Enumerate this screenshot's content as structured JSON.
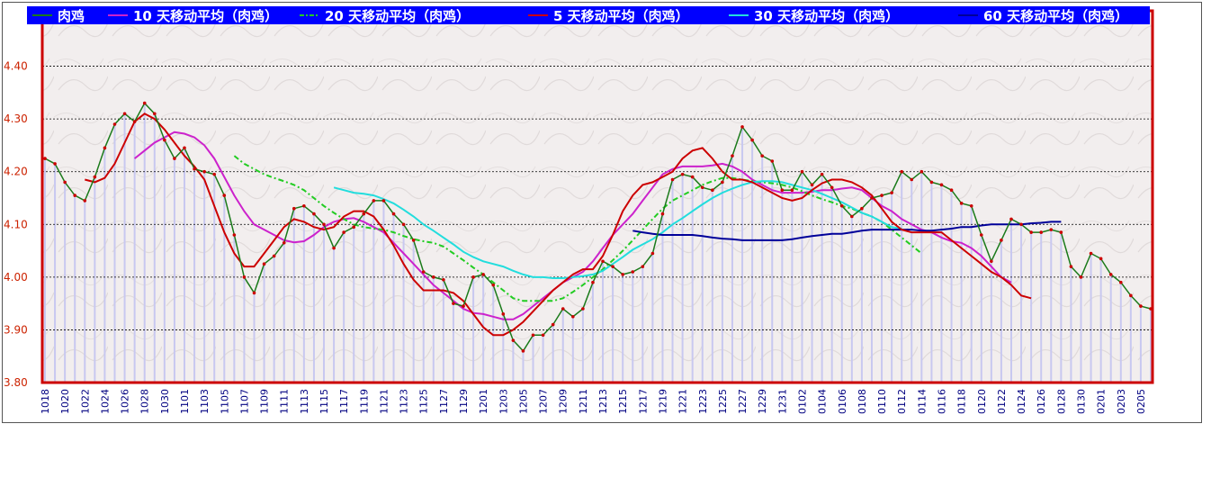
{
  "chart_data": {
    "type": "line",
    "y_ticks": [
      "3.80",
      "3.90",
      "4.00",
      "4.10",
      "4.20",
      "4.30",
      "4.40"
    ],
    "ylim": [
      3.8,
      4.5
    ],
    "x_labels": [
      "1018",
      "1020",
      "1022",
      "1024",
      "1026",
      "1028",
      "1030",
      "1101",
      "1103",
      "1105",
      "1107",
      "1109",
      "1111",
      "1113",
      "1115",
      "1117",
      "1119",
      "1121",
      "1123",
      "1125",
      "1127",
      "1129",
      "1201",
      "1203",
      "1205",
      "1207",
      "1209",
      "1211",
      "1213",
      "1215",
      "1217",
      "1219",
      "1221",
      "1223",
      "1225",
      "1227",
      "1229",
      "1231",
      "0102",
      "0104",
      "0106",
      "0108",
      "0110",
      "0112",
      "0114",
      "0116",
      "0118",
      "0120",
      "0122",
      "0124",
      "0126",
      "0128",
      "0130",
      "0201",
      "0203",
      "0205"
    ],
    "grid": "horizontal dashed",
    "legend_position": "top",
    "series": [
      {
        "name": "肉鸡",
        "color": "#1a7a1a",
        "marker_color": "#cc0000",
        "values": [
          4.225,
          4.215,
          4.18,
          4.155,
          4.145,
          4.19,
          4.245,
          4.29,
          4.31,
          4.295,
          4.33,
          4.31,
          4.26,
          4.225,
          4.245,
          4.205,
          4.2,
          4.195,
          4.155,
          4.08,
          4.0,
          3.97,
          4.025,
          4.04,
          4.065,
          4.13,
          4.135,
          4.12,
          4.1,
          4.055,
          4.085,
          4.095,
          4.12,
          4.145,
          4.145,
          4.12,
          4.1,
          4.07,
          4.01,
          4.0,
          3.995,
          3.95,
          3.945,
          4.0,
          4.005,
          3.985,
          3.93,
          3.88,
          3.86,
          3.89,
          3.89,
          3.91,
          3.94,
          3.925,
          3.94,
          3.99,
          4.03,
          4.02,
          4.005,
          4.01,
          4.02,
          4.045,
          4.12,
          4.185,
          4.195,
          4.19,
          4.17,
          4.165,
          4.18,
          4.23,
          4.285,
          4.26,
          4.23,
          4.22,
          4.165,
          4.165,
          4.2,
          4.175,
          4.195,
          4.17,
          4.135,
          4.115,
          4.13,
          4.15,
          4.155,
          4.16,
          4.2,
          4.185,
          4.2,
          4.18,
          4.175,
          4.165,
          4.14,
          4.135,
          4.08,
          4.03,
          4.07,
          4.11,
          4.1,
          4.085,
          4.085,
          4.09,
          4.085,
          4.02,
          4.0,
          4.045,
          4.035,
          4.005,
          3.99,
          3.965,
          3.945,
          3.94
        ]
      },
      {
        "name": "10 天移动平均（肉鸡）",
        "color": "#cc22cc",
        "start_index": 9,
        "values": [
          4.225,
          4.24,
          4.255,
          4.265,
          4.275,
          4.272,
          4.265,
          4.25,
          4.225,
          4.19,
          4.155,
          4.125,
          4.1,
          4.09,
          4.08,
          4.07,
          4.066,
          4.068,
          4.08,
          4.095,
          4.105,
          4.11,
          4.112,
          4.105,
          4.095,
          4.085,
          4.065,
          4.045,
          4.025,
          4.005,
          3.985,
          3.97,
          3.955,
          3.94,
          3.932,
          3.93,
          3.925,
          3.92,
          3.92,
          3.93,
          3.945,
          3.96,
          3.975,
          3.99,
          4.0,
          4.01,
          4.03,
          4.055,
          4.08,
          4.1,
          4.12,
          4.145,
          4.17,
          4.195,
          4.205,
          4.21,
          4.21,
          4.21,
          4.212,
          4.215,
          4.21,
          4.2,
          4.185,
          4.175,
          4.165,
          4.16,
          4.16,
          4.16,
          4.162,
          4.165,
          4.165,
          4.168,
          4.17,
          4.165,
          4.15,
          4.135,
          4.125,
          4.11,
          4.1,
          4.09,
          4.085,
          4.075,
          4.068,
          4.065,
          4.055,
          4.04,
          4.02,
          4.0,
          3.99
        ]
      },
      {
        "name": "20 天移动平均（肉鸡）",
        "color": "#22cc22",
        "dashed": true,
        "start_index": 19,
        "values": [
          4.23,
          4.215,
          4.205,
          4.195,
          4.188,
          4.182,
          4.175,
          4.165,
          4.15,
          4.135,
          4.122,
          4.11,
          4.1,
          4.095,
          4.092,
          4.09,
          4.085,
          4.078,
          4.072,
          4.068,
          4.065,
          4.058,
          4.045,
          4.032,
          4.018,
          4.005,
          3.99,
          3.975,
          3.96,
          3.955,
          3.955,
          3.955,
          3.955,
          3.96,
          3.972,
          3.985,
          4.0,
          4.015,
          4.032,
          4.05,
          4.07,
          4.09,
          4.11,
          4.13,
          4.145,
          4.155,
          4.165,
          4.175,
          4.182,
          4.188,
          4.188,
          4.185,
          4.182,
          4.18,
          4.178,
          4.175,
          4.17,
          4.163,
          4.155,
          4.148,
          4.142,
          4.135,
          4.13,
          4.122,
          4.115,
          4.105,
          4.09,
          4.075,
          4.06,
          4.045
        ]
      },
      {
        "name": "5 天移动平均（肉鸡）",
        "color": "#cc0000",
        "start_index": 4,
        "values": [
          4.185,
          4.18,
          4.188,
          4.215,
          4.255,
          4.295,
          4.31,
          4.3,
          4.28,
          4.255,
          4.23,
          4.21,
          4.185,
          4.135,
          4.085,
          4.045,
          4.02,
          4.02,
          4.045,
          4.07,
          4.095,
          4.11,
          4.105,
          4.095,
          4.09,
          4.095,
          4.115,
          4.125,
          4.125,
          4.115,
          4.09,
          4.06,
          4.025,
          3.995,
          3.975,
          3.975,
          3.975,
          3.97,
          3.955,
          3.93,
          3.905,
          3.89,
          3.89,
          3.9,
          3.915,
          3.935,
          3.955,
          3.975,
          3.99,
          4.005,
          4.015,
          4.015,
          4.04,
          4.08,
          4.125,
          4.155,
          4.175,
          4.18,
          4.19,
          4.2,
          4.225,
          4.24,
          4.245,
          4.225,
          4.2,
          4.185,
          4.185,
          4.18,
          4.17,
          4.16,
          4.15,
          4.145,
          4.15,
          4.165,
          4.178,
          4.185,
          4.185,
          4.18,
          4.17,
          4.155,
          4.13,
          4.105,
          4.09,
          4.085,
          4.085,
          4.085,
          4.085,
          4.07,
          4.055,
          4.04,
          4.025,
          4.01,
          4.0,
          3.985,
          3.965,
          3.96
        ]
      },
      {
        "name": "30 天移动平均（肉鸡）",
        "color": "#22dddd",
        "start_index": 29,
        "values": [
          4.17,
          4.165,
          4.16,
          4.158,
          4.155,
          4.148,
          4.14,
          4.128,
          4.115,
          4.1,
          4.088,
          4.075,
          4.062,
          4.048,
          4.038,
          4.03,
          4.025,
          4.02,
          4.012,
          4.005,
          4.0,
          4.0,
          3.998,
          3.998,
          4.0,
          4.002,
          4.005,
          4.012,
          4.025,
          4.038,
          4.052,
          4.062,
          4.072,
          4.085,
          4.1,
          4.112,
          4.125,
          4.138,
          4.15,
          4.16,
          4.168,
          4.175,
          4.18,
          4.182,
          4.182,
          4.18,
          4.175,
          4.17,
          4.165,
          4.158,
          4.15,
          4.142,
          4.132,
          4.122,
          4.115,
          4.105,
          4.095,
          4.092
        ]
      },
      {
        "name": "60 天移动平均（肉鸡）",
        "color": "#000099",
        "start_index": 59,
        "values": [
          4.088,
          4.085,
          4.082,
          4.08,
          4.08,
          4.08,
          4.08,
          4.078,
          4.075,
          4.073,
          4.072,
          4.07,
          4.07,
          4.07,
          4.07,
          4.07,
          4.072,
          4.075,
          4.078,
          4.08,
          4.082,
          4.082,
          4.085,
          4.088,
          4.09,
          4.09,
          4.09,
          4.09,
          4.09,
          4.088,
          4.088,
          4.09,
          4.092,
          4.095,
          4.095,
          4.098,
          4.1,
          4.1,
          4.1,
          4.1,
          4.102,
          4.103,
          4.105,
          4.105
        ]
      }
    ]
  },
  "colors": {
    "plot_border": "#cc0000",
    "legend_bg": "#0000ff",
    "legend_text": "#ffffff",
    "bars": "#c8c8f0",
    "bar_marker": "#cc0000"
  }
}
